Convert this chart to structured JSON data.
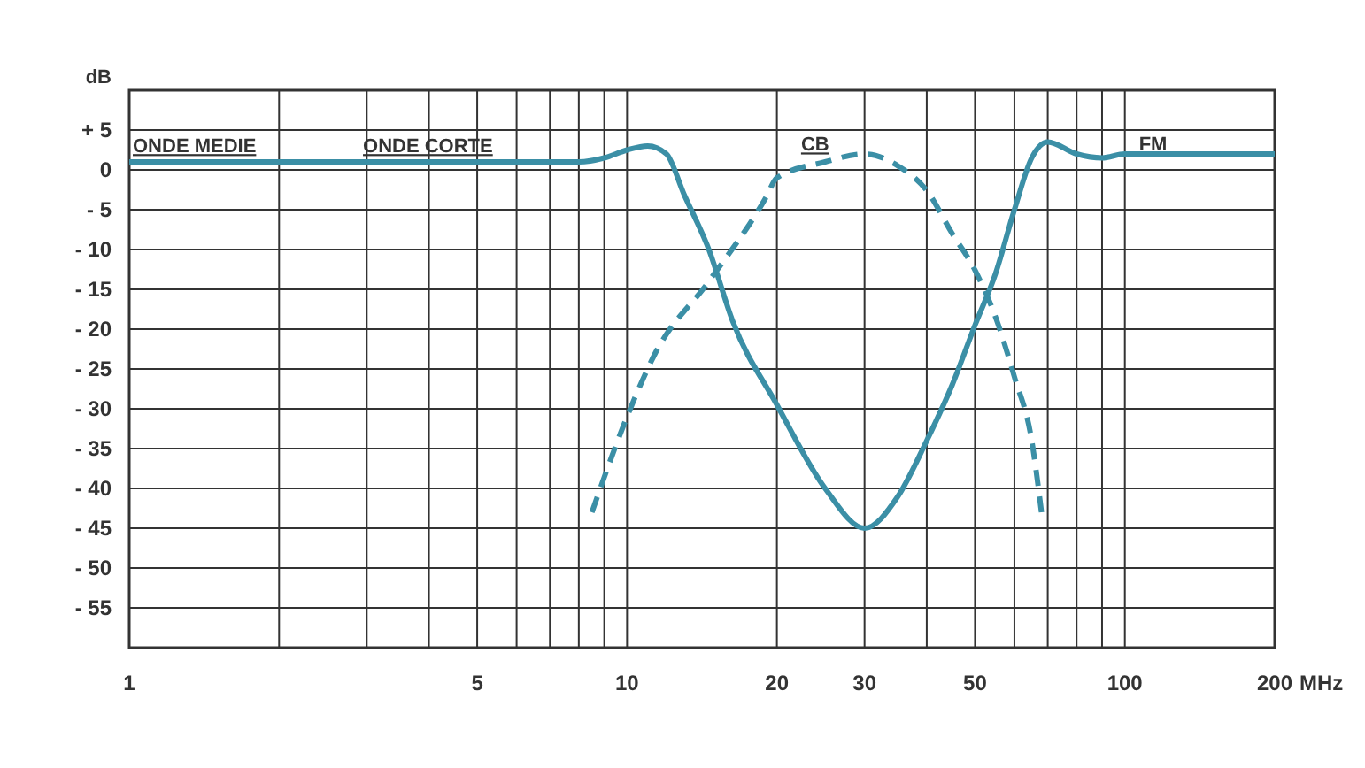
{
  "chart_data": {
    "type": "line",
    "ylabel": "dB",
    "xlabel": "MHz",
    "log": "x",
    "grid": true,
    "xlim": [
      1,
      200
    ],
    "ylim": [
      -60,
      10
    ],
    "xticks": [
      1,
      {
        "value": 2,
        "label": null
      },
      {
        "value": 3,
        "label": null
      },
      {
        "value": 4,
        "label": null
      },
      5,
      {
        "value": 6,
        "label": null
      },
      {
        "value": 7,
        "label": null
      },
      {
        "value": 8,
        "label": null
      },
      {
        "value": 9,
        "label": null
      },
      10,
      20,
      30,
      {
        "value": 40,
        "label": null
      },
      50,
      {
        "value": 60,
        "label": null
      },
      {
        "value": 70,
        "label": null
      },
      {
        "value": 80,
        "label": null
      },
      {
        "value": 90,
        "label": null
      },
      100,
      200
    ],
    "yticks": [
      {
        "value": 10,
        "label": null
      },
      {
        "value": 5,
        "label": "+ 5"
      },
      0,
      {
        "value": -5,
        "label": "- 5"
      },
      {
        "value": -10,
        "label": "- 10"
      },
      {
        "value": -15,
        "label": "- 15"
      },
      {
        "value": -20,
        "label": "- 20"
      },
      {
        "value": -25,
        "label": "- 25"
      },
      {
        "value": -30,
        "label": "- 30"
      },
      {
        "value": -35,
        "label": "- 35"
      },
      {
        "value": -40,
        "label": "- 40"
      },
      {
        "value": -45,
        "label": "- 45"
      },
      {
        "value": -50,
        "label": "- 50"
      },
      {
        "value": -55,
        "label": "- 55"
      },
      {
        "value": -60,
        "label": null
      }
    ],
    "series": [
      {
        "color": "#3b8fa6",
        "line_style": "solid",
        "x": [
          1,
          3,
          5,
          8,
          9,
          10,
          11,
          12,
          13,
          14.6,
          16.3,
          20,
          25,
          30,
          35,
          40,
          45,
          50,
          55,
          60,
          65,
          70,
          80,
          90,
          100,
          200
        ],
        "values": [
          1,
          1,
          1,
          1,
          1.5,
          2.5,
          3,
          2,
          -3,
          -10,
          -19,
          -29.5,
          -40,
          -45,
          -41,
          -34,
          -27,
          -19.5,
          -13,
          -5,
          1.5,
          3.5,
          2,
          1.5,
          2,
          2
        ]
      },
      {
        "color": "#3b8fa6",
        "line_style": "dashed",
        "x": [
          8.5,
          10,
          11.4,
          14.6,
          19,
          20,
          25,
          30,
          35,
          40,
          45,
          50,
          55,
          60,
          65,
          68
        ],
        "values": [
          -43,
          -31,
          -23,
          -14,
          -3.5,
          -1,
          1,
          2,
          0.5,
          -2.6,
          -8,
          -12.6,
          -18.5,
          -26,
          -34,
          -43
        ]
      }
    ],
    "annotations": [
      "ONDE MEDIE",
      "ONDE CORTE",
      "CB",
      "FM"
    ]
  }
}
